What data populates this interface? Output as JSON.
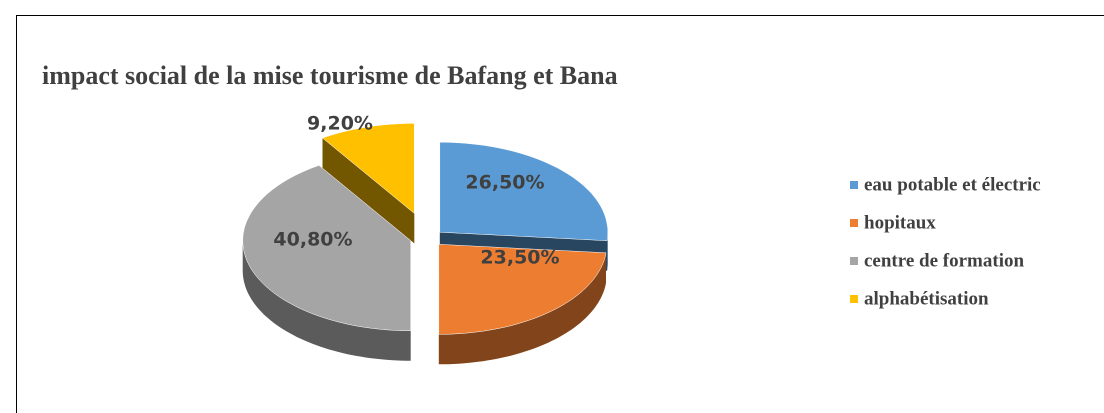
{
  "chart_data": {
    "type": "pie",
    "title": "impact social de la mise tourisme de Bafang et Bana",
    "categories": [
      "eau potable et électric",
      "hopitaux",
      "centre de formation",
      "alphabétisation"
    ],
    "values": [
      26.5,
      23.5,
      40.8,
      9.2
    ],
    "value_labels": [
      "26,50%",
      "23,50%",
      "40,80%",
      "9,20%"
    ],
    "colors": [
      "#5b9bd5",
      "#ed7d31",
      "#a5a5a5",
      "#ffc000"
    ],
    "legend": "right"
  }
}
